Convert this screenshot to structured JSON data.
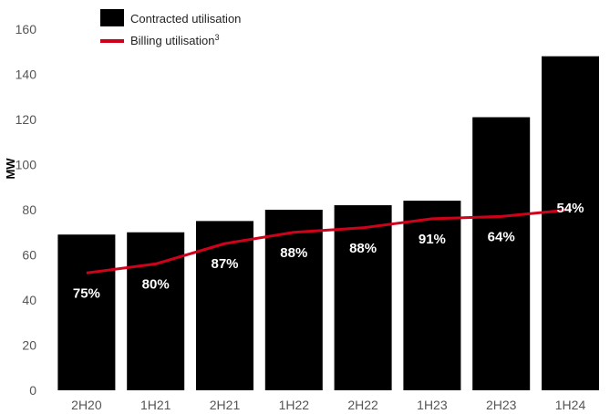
{
  "chart_data": {
    "type": "bar",
    "categories": [
      "2H20",
      "1H21",
      "2H21",
      "1H22",
      "2H22",
      "1H23",
      "2H23",
      "1H24"
    ],
    "series": [
      {
        "name": "Contracted utilisation",
        "kind": "bar",
        "color": "#000000",
        "values": [
          69,
          70,
          75,
          80,
          82,
          84,
          121,
          148
        ]
      },
      {
        "name": "Billing utilisation",
        "name_superscript": "3",
        "kind": "line",
        "color": "#d0021b",
        "values": [
          52,
          56,
          65,
          70,
          72,
          76,
          77,
          80
        ]
      }
    ],
    "data_labels": [
      "75%",
      "80%",
      "87%",
      "88%",
      "88%",
      "91%",
      "64%",
      "54%"
    ],
    "ylabel": "MW",
    "xlabel": "",
    "ylim": [
      0,
      160
    ],
    "yticks": [
      0,
      20,
      40,
      60,
      80,
      100,
      120,
      140,
      160
    ],
    "grid": false,
    "legend_position": "top-left"
  }
}
